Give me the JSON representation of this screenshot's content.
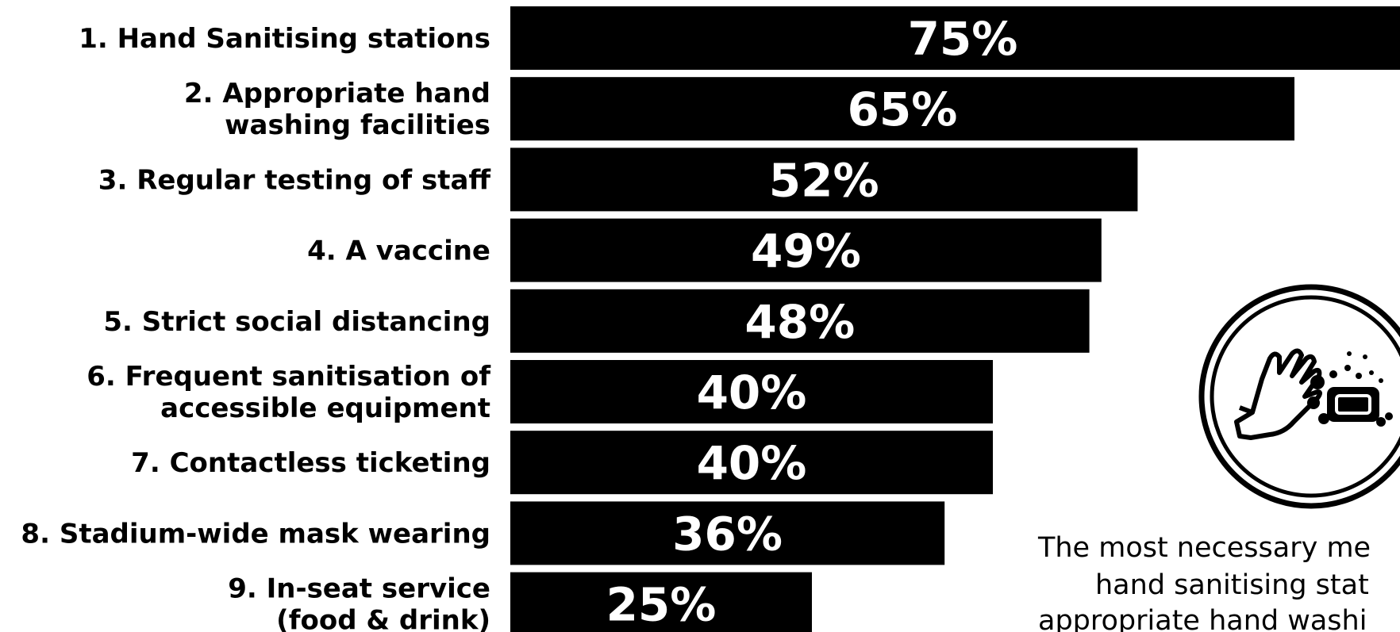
{
  "chart_data": {
    "type": "bar",
    "orientation": "horizontal",
    "categories": [
      [
        "1. Hand Sanitising stations"
      ],
      [
        "2. Appropriate hand",
        "washing facilities"
      ],
      [
        "3. Regular testing of staff"
      ],
      [
        "4. A vaccine"
      ],
      [
        "5. Strict social distancing"
      ],
      [
        "6. Frequent sanitisation of",
        "accessible equipment"
      ],
      [
        "7. Contactless ticketing"
      ],
      [
        "8. Stadium-wide mask wearing"
      ],
      [
        "9. In-seat service",
        "(food & drink)"
      ]
    ],
    "values": [
      75,
      65,
      52,
      49,
      48,
      40,
      40,
      36,
      25
    ],
    "value_labels": [
      "75%",
      "65%",
      "52%",
      "49%",
      "48%",
      "40%",
      "40%",
      "36%",
      "25%"
    ],
    "title": "",
    "xlabel": "",
    "ylabel": "",
    "grid": false,
    "bar_color": "#000000",
    "value_label_color": "#ffffff"
  },
  "annotation": {
    "lines": [
      "The most necessary me",
      "hand sanitising stat",
      "appropriate hand washi"
    ],
    "icon": "hand-sanitiser-icon"
  }
}
